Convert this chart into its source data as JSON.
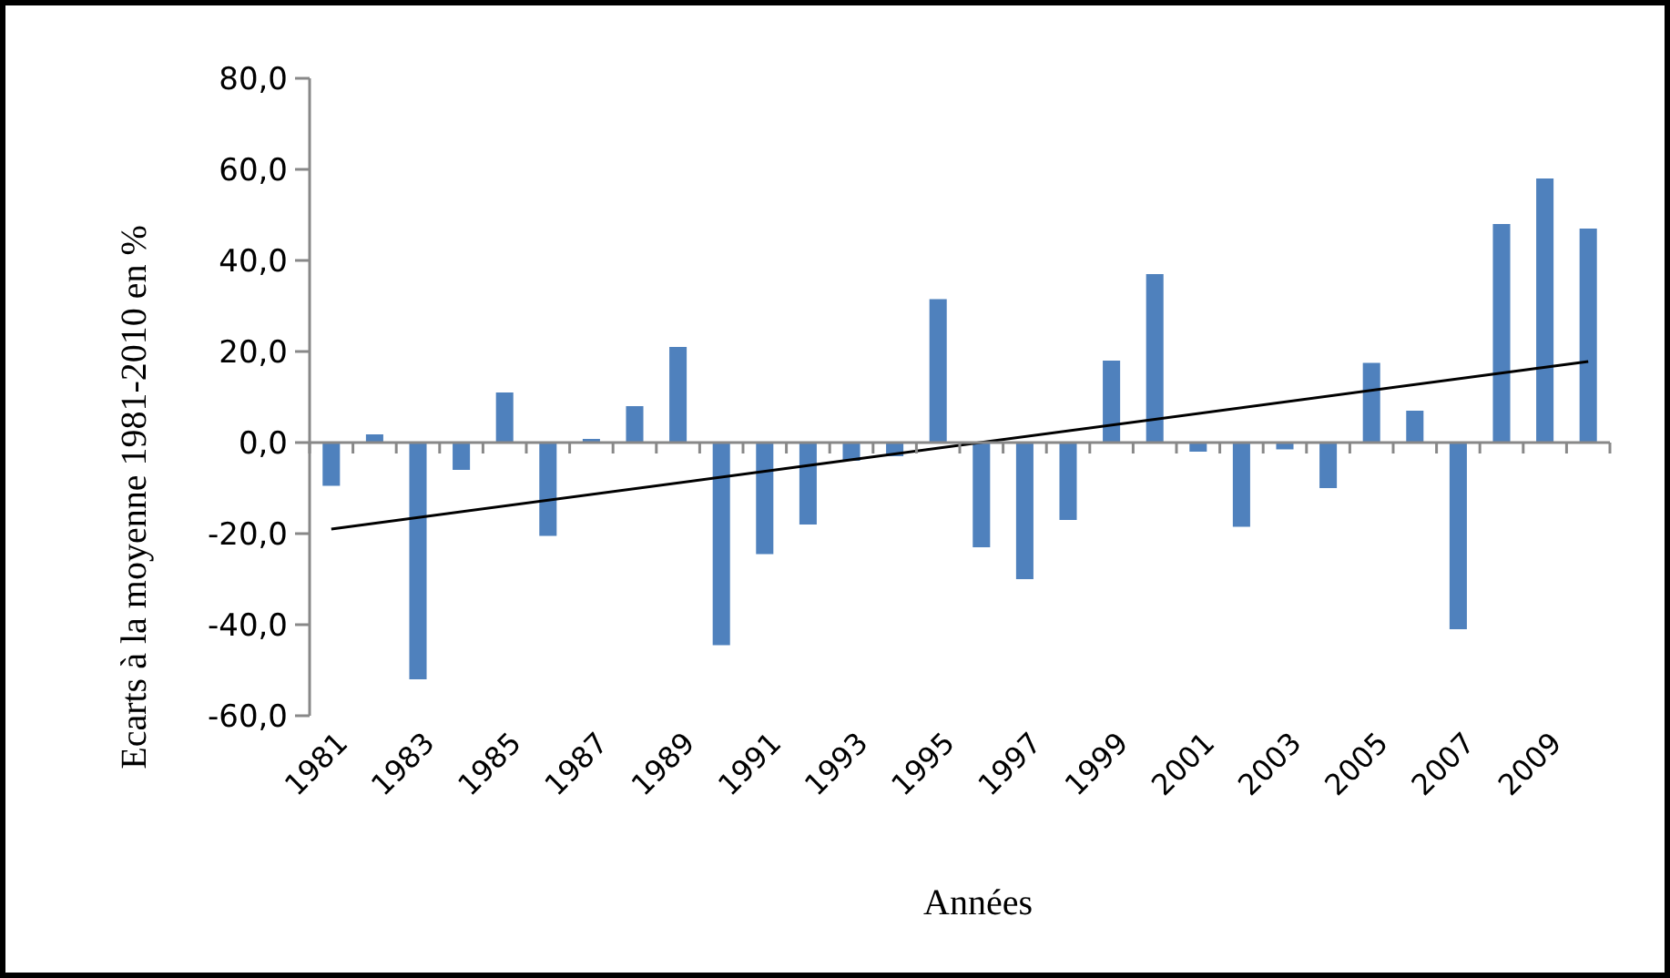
{
  "chart_data": {
    "type": "bar",
    "xlabel": "Années",
    "ylabel": "Ecarts à la moyenne 1981-2010 en %",
    "categories": [
      "1981",
      null,
      "1983",
      null,
      "1985",
      null,
      "1987",
      null,
      "1989",
      null,
      "1991",
      null,
      "1993",
      null,
      "1995",
      null,
      "1997",
      null,
      "1999",
      null,
      "2001",
      null,
      "2003",
      null,
      "2005",
      null,
      "2007",
      null,
      "2009",
      null
    ],
    "series": [
      {
        "color": "#4f81bd",
        "values": [
          -9.5,
          1.8,
          -52,
          -6,
          11,
          -20.5,
          0.8,
          8,
          21,
          -44.5,
          -24.5,
          -18,
          -4,
          -3,
          31.5,
          -23,
          -30,
          -17,
          18,
          37,
          -2,
          -18.5,
          -1.5,
          -10,
          17.5,
          7,
          -41,
          48,
          58,
          47
        ]
      },
      {
        "type": "line",
        "color": "#000000",
        "values": [
          -19,
          null,
          null,
          null,
          null,
          null,
          null,
          null,
          null,
          null,
          null,
          null,
          null,
          null,
          null,
          null,
          null,
          null,
          null,
          null,
          null,
          null,
          null,
          null,
          null,
          null,
          null,
          null,
          null,
          17.8
        ]
      }
    ],
    "ylim": [
      -60,
      80
    ],
    "yticks": [
      {
        "value": -60,
        "label": "-60,0"
      },
      {
        "value": -40,
        "label": "-40,0"
      },
      {
        "value": -20,
        "label": "-20,0"
      },
      {
        "value": 0,
        "label": "0,0"
      },
      {
        "value": 20,
        "label": "20,0"
      },
      {
        "value": 40,
        "label": "40,0"
      },
      {
        "value": 60,
        "label": "60,0"
      },
      {
        "value": 80,
        "label": "80,0"
      }
    ],
    "line_style": "solid"
  }
}
